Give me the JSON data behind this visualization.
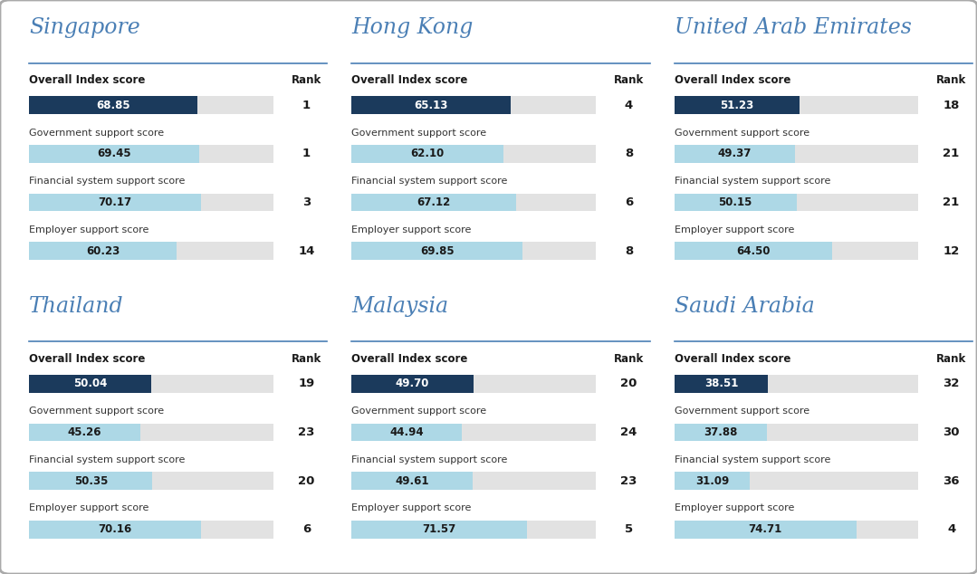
{
  "countries": [
    {
      "name": "Singapore",
      "overall_score": 68.85,
      "overall_rank": 1,
      "gov_score": 69.45,
      "gov_rank": 1,
      "fin_score": 70.17,
      "fin_rank": 3,
      "emp_score": 60.23,
      "emp_rank": 14
    },
    {
      "name": "Hong Kong",
      "overall_score": 65.13,
      "overall_rank": 4,
      "gov_score": 62.1,
      "gov_rank": 8,
      "fin_score": 67.12,
      "fin_rank": 6,
      "emp_score": 69.85,
      "emp_rank": 8
    },
    {
      "name": "United Arab Emirates",
      "overall_score": 51.23,
      "overall_rank": 18,
      "gov_score": 49.37,
      "gov_rank": 21,
      "fin_score": 50.15,
      "fin_rank": 21,
      "emp_score": 64.5,
      "emp_rank": 12
    },
    {
      "name": "Thailand",
      "overall_score": 50.04,
      "overall_rank": 19,
      "gov_score": 45.26,
      "gov_rank": 23,
      "fin_score": 50.35,
      "fin_rank": 20,
      "emp_score": 70.16,
      "emp_rank": 6
    },
    {
      "name": "Malaysia",
      "overall_score": 49.7,
      "overall_rank": 20,
      "gov_score": 44.94,
      "gov_rank": 24,
      "fin_score": 49.61,
      "fin_rank": 23,
      "emp_score": 71.57,
      "emp_rank": 5
    },
    {
      "name": "Saudi Arabia",
      "overall_score": 38.51,
      "overall_rank": 32,
      "gov_score": 37.88,
      "gov_rank": 30,
      "fin_score": 31.09,
      "fin_rank": 36,
      "emp_score": 74.71,
      "emp_rank": 4
    }
  ],
  "max_score": 100,
  "dark_blue": "#1b3a5c",
  "light_blue": "#add8e6",
  "light_gray": "#e2e2e2",
  "title_color": "#4a7fb5",
  "bg_color": "#ffffff",
  "label_color": "#333333",
  "header_color": "#1a1a1a",
  "divider_color": "#4a7fb5",
  "outer_border_color": "#aaaaaa"
}
